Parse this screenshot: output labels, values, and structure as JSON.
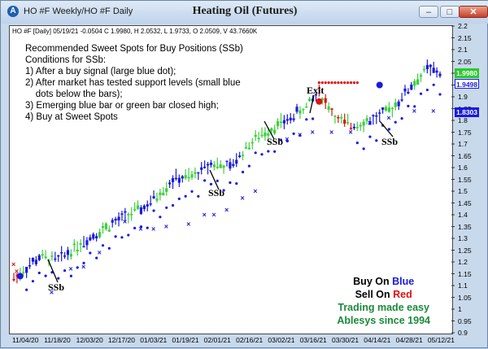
{
  "window": {
    "title": "HO #F Weekly/HO #F Daily",
    "minimize": "–",
    "maximize": "□",
    "close": "✕"
  },
  "chart_title": "Heating Oil (Futures)",
  "ohlc_line": "HO #F [Daily] 05/19/21 -0.0504 C 1.9980, H 2.0532, L 1.9733, O 2.0509, V 43.7660K",
  "notes": [
    "Recommended Sweet Spots for Buy Positions (SSb)",
    "Conditions for SSb:",
    "1) After a buy signal (large blue dot);",
    "2) After market has tested support levels (small blue",
    "    dots below the bars);",
    "3) Emerging blue bar or green bar closed high;",
    "4) Buy at Sweet Spots"
  ],
  "annotations": {
    "ssb": "SSb",
    "exit": "Exit"
  },
  "brand": {
    "buy_prefix": "Buy On ",
    "buy_word": "Blue",
    "sell_prefix": "Sell On ",
    "sell_word": "Red",
    "line3": "Trading made easy",
    "line4": "Ablesys since 1994"
  },
  "price_boxes": [
    "1.9980",
    "1.9498",
    "1.8303"
  ],
  "colors": {
    "blue": "#1a1adf",
    "green": "#3bd13b",
    "red": "#e01010",
    "brand_green": "#1a8a3a",
    "box_green": "#2ec82e",
    "box_blue": "#1a1adf"
  },
  "chart_data": {
    "type": "bar",
    "y_ticks": [
      "2.2",
      "2.15",
      "2.1",
      "2.05",
      "2",
      "1.95",
      "1.9",
      "1.85",
      "1.8",
      "1.75",
      "1.7",
      "1.65",
      "1.6",
      "1.55",
      "1.5",
      "1.45",
      "1.4",
      "1.35",
      "1.3",
      "1.25",
      "1.2",
      "1.15",
      "1.1",
      "1.05",
      "1",
      "0.95",
      "0.9"
    ],
    "ylim": [
      0.9,
      2.2
    ],
    "x_ticks": [
      "11/04/20",
      "11/18/20",
      "12/03/20",
      "12/17/20",
      "01/03/21",
      "01/19/21",
      "02/01/21",
      "02/16/21",
      "03/02/21",
      "03/16/21",
      "03/30/21",
      "04/14/21",
      "04/28/21",
      "05/12/21"
    ],
    "series": [
      {
        "name": "Blue bars",
        "color": "blue"
      },
      {
        "name": "Green bars",
        "color": "green"
      },
      {
        "name": "Red bars",
        "color": "red"
      }
    ],
    "last_price": 1.998
  }
}
